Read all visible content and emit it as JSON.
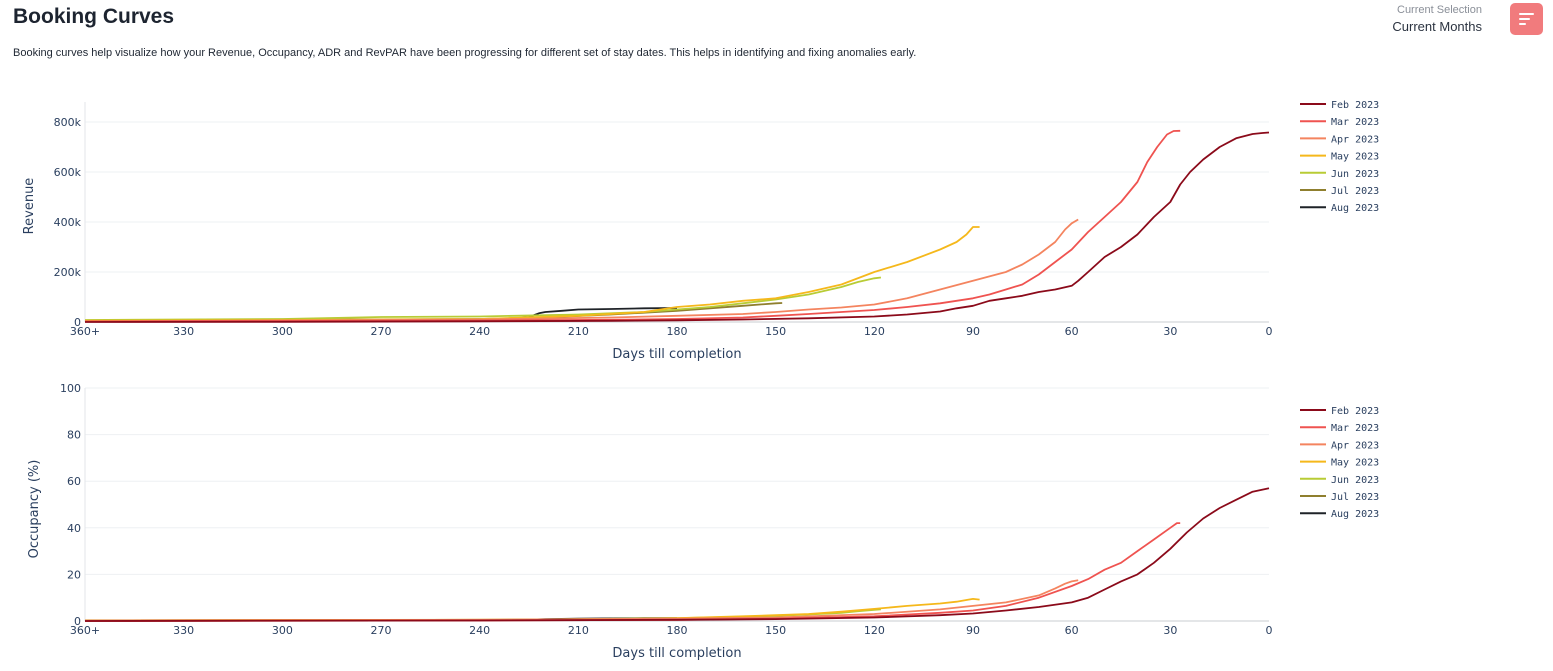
{
  "header": {
    "title": "Booking Curves",
    "description": "Booking curves help visualize how your Revenue, Occupancy, ADR and RevPAR have been progressing for different set of stay dates. This helps in identifying and fixing anomalies early.",
    "selection_label": "Current Selection",
    "selection_value": "Current Months",
    "menu_icon": "sort-lines-icon",
    "menu_color": "#f17b7d"
  },
  "chart_data": [
    {
      "type": "line",
      "xlabel": "Days till completion",
      "ylabel": "Revenue",
      "x_ticks": [
        "360+",
        "330",
        "300",
        "270",
        "240",
        "210",
        "180",
        "150",
        "120",
        "90",
        "60",
        "30",
        "0"
      ],
      "x_reversed": true,
      "xlim": [
        360,
        0
      ],
      "ylim": [
        0,
        880000
      ],
      "y_ticks": [
        0,
        200000,
        400000,
        600000,
        800000
      ],
      "y_tick_labels": [
        "0",
        "200k",
        "400k",
        "600k",
        "800k"
      ],
      "grid": true,
      "legend_position": "right",
      "series": [
        {
          "name": "Feb 2023",
          "color": "#8b0a1a",
          "x": [
            360,
            300,
            240,
            200,
            180,
            160,
            140,
            120,
            110,
            100,
            95,
            90,
            85,
            80,
            75,
            70,
            65,
            60,
            58,
            55,
            50,
            45,
            40,
            35,
            30,
            27,
            24,
            20,
            15,
            10,
            5,
            2,
            0
          ],
          "y": [
            0,
            1000,
            3000,
            5000,
            7000,
            10000,
            15000,
            22000,
            30000,
            42000,
            55000,
            65000,
            85000,
            95000,
            105000,
            120000,
            130000,
            145000,
            165000,
            200000,
            260000,
            300000,
            350000,
            420000,
            480000,
            550000,
            600000,
            650000,
            700000,
            735000,
            752000,
            756000,
            758000
          ]
        },
        {
          "name": "Mar 2023",
          "color": "#ef5350",
          "x": [
            360,
            300,
            240,
            200,
            180,
            160,
            150,
            140,
            130,
            120,
            110,
            100,
            90,
            85,
            80,
            75,
            70,
            65,
            60,
            55,
            50,
            45,
            40,
            37,
            34,
            31,
            29,
            27
          ],
          "y": [
            2000,
            4000,
            6000,
            9000,
            12000,
            18000,
            25000,
            32000,
            40000,
            48000,
            60000,
            75000,
            95000,
            110000,
            130000,
            150000,
            190000,
            240000,
            290000,
            360000,
            420000,
            480000,
            560000,
            640000,
            700000,
            750000,
            764000,
            765000
          ]
        },
        {
          "name": "Apr 2023",
          "color": "#f4845f",
          "x": [
            360,
            300,
            240,
            200,
            180,
            160,
            150,
            140,
            130,
            120,
            110,
            100,
            90,
            80,
            75,
            70,
            65,
            62,
            60,
            58
          ],
          "y": [
            3000,
            6000,
            10000,
            18000,
            25000,
            32000,
            40000,
            50000,
            58000,
            70000,
            95000,
            130000,
            165000,
            200000,
            230000,
            270000,
            320000,
            370000,
            395000,
            410000
          ]
        },
        {
          "name": "May 2023",
          "color": "#f5b81b",
          "x": [
            360,
            300,
            240,
            210,
            190,
            180,
            170,
            160,
            150,
            140,
            130,
            120,
            110,
            100,
            95,
            92,
            90,
            88
          ],
          "y": [
            5000,
            8000,
            12000,
            25000,
            40000,
            60000,
            70000,
            85000,
            95000,
            120000,
            150000,
            200000,
            240000,
            290000,
            320000,
            350000,
            380000,
            380000
          ]
        },
        {
          "name": "Jun 2023",
          "color": "#b8cc35",
          "x": [
            360,
            300,
            270,
            240,
            210,
            190,
            180,
            170,
            160,
            150,
            140,
            130,
            125,
            120,
            118
          ],
          "y": [
            8000,
            12000,
            20000,
            22000,
            30000,
            40000,
            50000,
            60000,
            75000,
            90000,
            110000,
            140000,
            160000,
            175000,
            178000
          ]
        },
        {
          "name": "Jul 2023",
          "color": "#8f7f2e",
          "x": [
            360,
            300,
            240,
            220,
            200,
            180,
            170,
            160,
            150,
            148
          ],
          "y": [
            6000,
            9000,
            12000,
            18000,
            30000,
            45000,
            55000,
            65000,
            75000,
            76000
          ]
        },
        {
          "name": "Aug 2023",
          "color": "#1f2328",
          "x": [
            360,
            300,
            250,
            230,
            225,
            222,
            220,
            215,
            210,
            200,
            190,
            180
          ],
          "y": [
            4000,
            6000,
            8000,
            12000,
            20000,
            35000,
            40000,
            45000,
            50000,
            52000,
            55000,
            56000
          ]
        }
      ]
    },
    {
      "type": "line",
      "xlabel": "Days till completion",
      "ylabel": "Occupancy (%)",
      "x_ticks": [
        "360+",
        "330",
        "300",
        "270",
        "240",
        "210",
        "180",
        "150",
        "120",
        "90",
        "60",
        "30",
        "0"
      ],
      "x_reversed": true,
      "xlim": [
        360,
        0
      ],
      "ylim": [
        0,
        100
      ],
      "y_ticks": [
        0,
        20,
        40,
        60,
        80,
        100
      ],
      "y_tick_labels": [
        "0",
        "20",
        "40",
        "60",
        "80",
        "100"
      ],
      "grid": true,
      "legend_position": "right",
      "series": [
        {
          "name": "Feb 2023",
          "color": "#8b0a1a",
          "x": [
            360,
            240,
            180,
            150,
            120,
            100,
            90,
            80,
            70,
            60,
            55,
            50,
            45,
            40,
            35,
            30,
            25,
            20,
            15,
            10,
            5,
            0
          ],
          "y": [
            0,
            0.2,
            0.5,
            0.8,
            1.5,
            2.5,
            3.2,
            4.5,
            6,
            8,
            10,
            13.5,
            17,
            20,
            25,
            31,
            38,
            44,
            48.5,
            52,
            55.5,
            57
          ]
        },
        {
          "name": "Mar 2023",
          "color": "#ef5350",
          "x": [
            360,
            240,
            180,
            150,
            120,
            100,
            90,
            80,
            70,
            60,
            55,
            50,
            45,
            40,
            35,
            30,
            28,
            27
          ],
          "y": [
            0,
            0.2,
            0.5,
            1,
            2,
            3.5,
            4.5,
            6.5,
            10,
            15,
            18,
            22,
            25,
            30,
            35,
            40,
            42,
            42
          ]
        },
        {
          "name": "Apr 2023",
          "color": "#f4845f",
          "x": [
            360,
            240,
            180,
            150,
            120,
            100,
            90,
            80,
            70,
            65,
            62,
            60,
            58
          ],
          "y": [
            0.2,
            0.5,
            1,
            1.5,
            3,
            5,
            6.5,
            8,
            11,
            14,
            16,
            17,
            17.5
          ]
        },
        {
          "name": "May 2023",
          "color": "#f5b81b",
          "x": [
            360,
            240,
            200,
            180,
            160,
            150,
            140,
            130,
            120,
            110,
            100,
            95,
            92,
            90,
            88
          ],
          "y": [
            0.2,
            0.5,
            0.8,
            1.2,
            2,
            2.5,
            3,
            4,
            5.2,
            6.5,
            7.5,
            8.3,
            9,
            9.5,
            9.2
          ]
        },
        {
          "name": "Jun 2023",
          "color": "#b8cc35",
          "x": [
            360,
            240,
            210,
            180,
            160,
            150,
            140,
            130,
            125,
            120,
            118
          ],
          "y": [
            0.3,
            0.5,
            0.8,
            1.2,
            1.8,
            2.2,
            2.8,
            3.5,
            4.2,
            4.8,
            5
          ]
        },
        {
          "name": "Jul 2023",
          "color": "#8f7f2e",
          "x": [
            360,
            240,
            200,
            180,
            160,
            150,
            148
          ],
          "y": [
            0.2,
            0.4,
            0.8,
            1.0,
            1.2,
            1.4,
            1.4
          ]
        },
        {
          "name": "Aug 2023",
          "color": "#1f2328",
          "x": [
            360,
            300,
            240,
            225,
            220,
            210,
            200,
            190,
            180
          ],
          "y": [
            0.1,
            0.2,
            0.4,
            0.6,
            0.8,
            1.0,
            1.1,
            1.2,
            1.2
          ]
        }
      ]
    }
  ]
}
